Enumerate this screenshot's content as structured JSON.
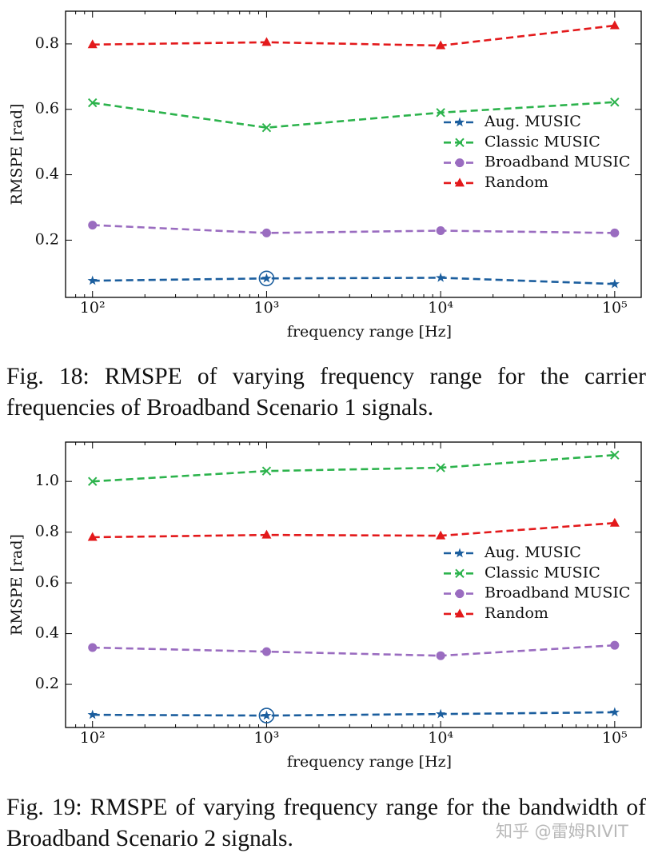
{
  "chart_data": [
    {
      "type": "line",
      "xlabel": "frequency range [Hz]",
      "ylabel": "RMSPE [rad]",
      "x": [
        100,
        1000,
        10000,
        100000
      ],
      "xscale": "log",
      "xlim": [
        70,
        142000
      ],
      "xticks": [
        {
          "value": 100,
          "label": "10²"
        },
        {
          "value": 1000,
          "label": "10³"
        },
        {
          "value": 10000,
          "label": "10⁴"
        },
        {
          "value": 100000,
          "label": "10⁵"
        }
      ],
      "ylim": [
        0.025,
        0.9
      ],
      "yticks": [
        0.2,
        0.4,
        0.6,
        0.8
      ],
      "legend": "center right",
      "series": [
        {
          "name": "Aug. MUSIC",
          "color": "#1b5e9e",
          "marker": "star",
          "highlight": 1,
          "values": [
            0.076,
            0.083,
            0.085,
            0.066
          ]
        },
        {
          "name": "Classic MUSIC",
          "color": "#2cb34c",
          "marker": "x",
          "values": [
            0.62,
            0.544,
            0.59,
            0.622
          ]
        },
        {
          "name": "Broadband MUSIC",
          "color": "#9a6cc0",
          "marker": "circle",
          "values": [
            0.246,
            0.222,
            0.229,
            0.222
          ]
        },
        {
          "name": "Random",
          "color": "#e3191b",
          "marker": "triangle",
          "values": [
            0.798,
            0.805,
            0.795,
            0.856
          ]
        }
      ],
      "caption": "Fig. 18: RMSPE of varying frequency range for the carrier frequencies of Broadband Scenario 1 signals."
    },
    {
      "type": "line",
      "xlabel": "frequency range [Hz]",
      "ylabel": "RMSPE [rad]",
      "x": [
        100,
        1000,
        10000,
        100000
      ],
      "xscale": "log",
      "xlim": [
        70,
        142000
      ],
      "xticks": [
        {
          "value": 100,
          "label": "10²"
        },
        {
          "value": 1000,
          "label": "10³"
        },
        {
          "value": 10000,
          "label": "10⁴"
        },
        {
          "value": 100000,
          "label": "10⁵"
        }
      ],
      "ylim": [
        0.03,
        1.155
      ],
      "yticks": [
        0.2,
        0.4,
        0.6,
        0.8,
        {
          "value": 1.0,
          "label": "1.0"
        }
      ],
      "legend": "center right",
      "series": [
        {
          "name": "Aug. MUSIC",
          "color": "#1b5e9e",
          "marker": "star",
          "highlight": 1,
          "values": [
            0.08,
            0.077,
            0.083,
            0.09
          ]
        },
        {
          "name": "Classic MUSIC",
          "color": "#2cb34c",
          "marker": "x",
          "values": [
            1.0,
            1.041,
            1.054,
            1.104
          ]
        },
        {
          "name": "Broadband MUSIC",
          "color": "#9a6cc0",
          "marker": "circle",
          "values": [
            0.345,
            0.329,
            0.313,
            0.354
          ]
        },
        {
          "name": "Random",
          "color": "#e3191b",
          "marker": "triangle",
          "values": [
            0.78,
            0.789,
            0.786,
            0.836
          ]
        }
      ],
      "caption": "Fig. 19: RMSPE of varying frequency range for the bandwidth of Broadband Scenario 2 signals."
    }
  ],
  "watermark": "知乎 @雷姆RIVIT"
}
